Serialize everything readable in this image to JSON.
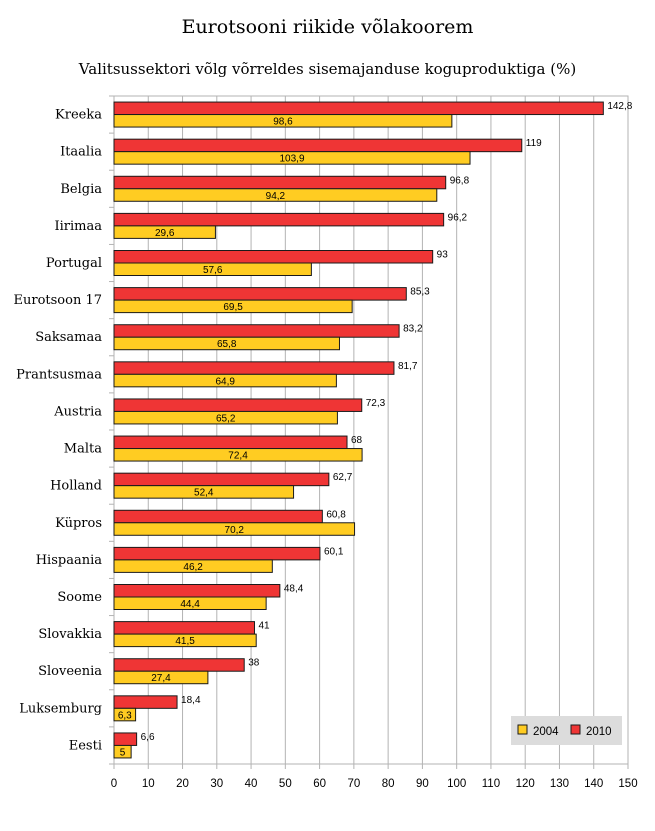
{
  "chart_data": {
    "type": "bar",
    "orientation": "horizontal",
    "title": "Eurotsooni riikide võlakoorem",
    "subtitle": "Valitsussektori võlg võrreldes sisemajanduse koguproduktiga (%)",
    "categories": [
      "Kreeka",
      "Itaalia",
      "Belgia",
      "Iirimaa",
      "Portugal",
      "Eurotsoon 17",
      "Saksamaa",
      "Prantsusmaa",
      "Austria",
      "Malta",
      "Holland",
      "Küpros",
      "Hispaania",
      "Soome",
      "Slovakkia",
      "Sloveenia",
      "Luksemburg",
      "Eesti"
    ],
    "series": [
      {
        "name": "2010",
        "color": "#ef3535",
        "values": [
          142.8,
          119,
          96.8,
          96.2,
          93,
          85.3,
          83.2,
          81.7,
          72.3,
          68,
          62.7,
          60.8,
          60.1,
          48.4,
          41,
          38,
          18.4,
          6.6
        ],
        "labels": [
          "142,8",
          "119",
          "96,8",
          "96,2",
          "93",
          "85,3",
          "83,2",
          "81,7",
          "72,3",
          "68",
          "62,7",
          "60,8",
          "60,1",
          "48,4",
          "41",
          "38",
          "18,4",
          "6,6"
        ]
      },
      {
        "name": "2004",
        "color": "#ffcc22",
        "values": [
          98.6,
          103.9,
          94.2,
          29.6,
          57.6,
          69.5,
          65.8,
          64.9,
          65.2,
          72.4,
          52.4,
          70.2,
          46.2,
          44.4,
          41.5,
          27.4,
          6.3,
          5
        ],
        "labels": [
          "98,6",
          "103,9",
          "94,2",
          "29,6",
          "57,6",
          "69,5",
          "65,8",
          "64,9",
          "65,2",
          "72,4",
          "52,4",
          "70,2",
          "46,2",
          "44,4",
          "41,5",
          "27,4",
          "6,3",
          "5"
        ]
      }
    ],
    "xlim": [
      0,
      150
    ],
    "xticks": [
      "0",
      "10",
      "20",
      "30",
      "40",
      "50",
      "60",
      "70",
      "80",
      "90",
      "100",
      "110",
      "120",
      "130",
      "140",
      "150"
    ],
    "grid": true,
    "legend": {
      "placement": "bottom-right",
      "entries": [
        "2004",
        "2010"
      ]
    }
  }
}
